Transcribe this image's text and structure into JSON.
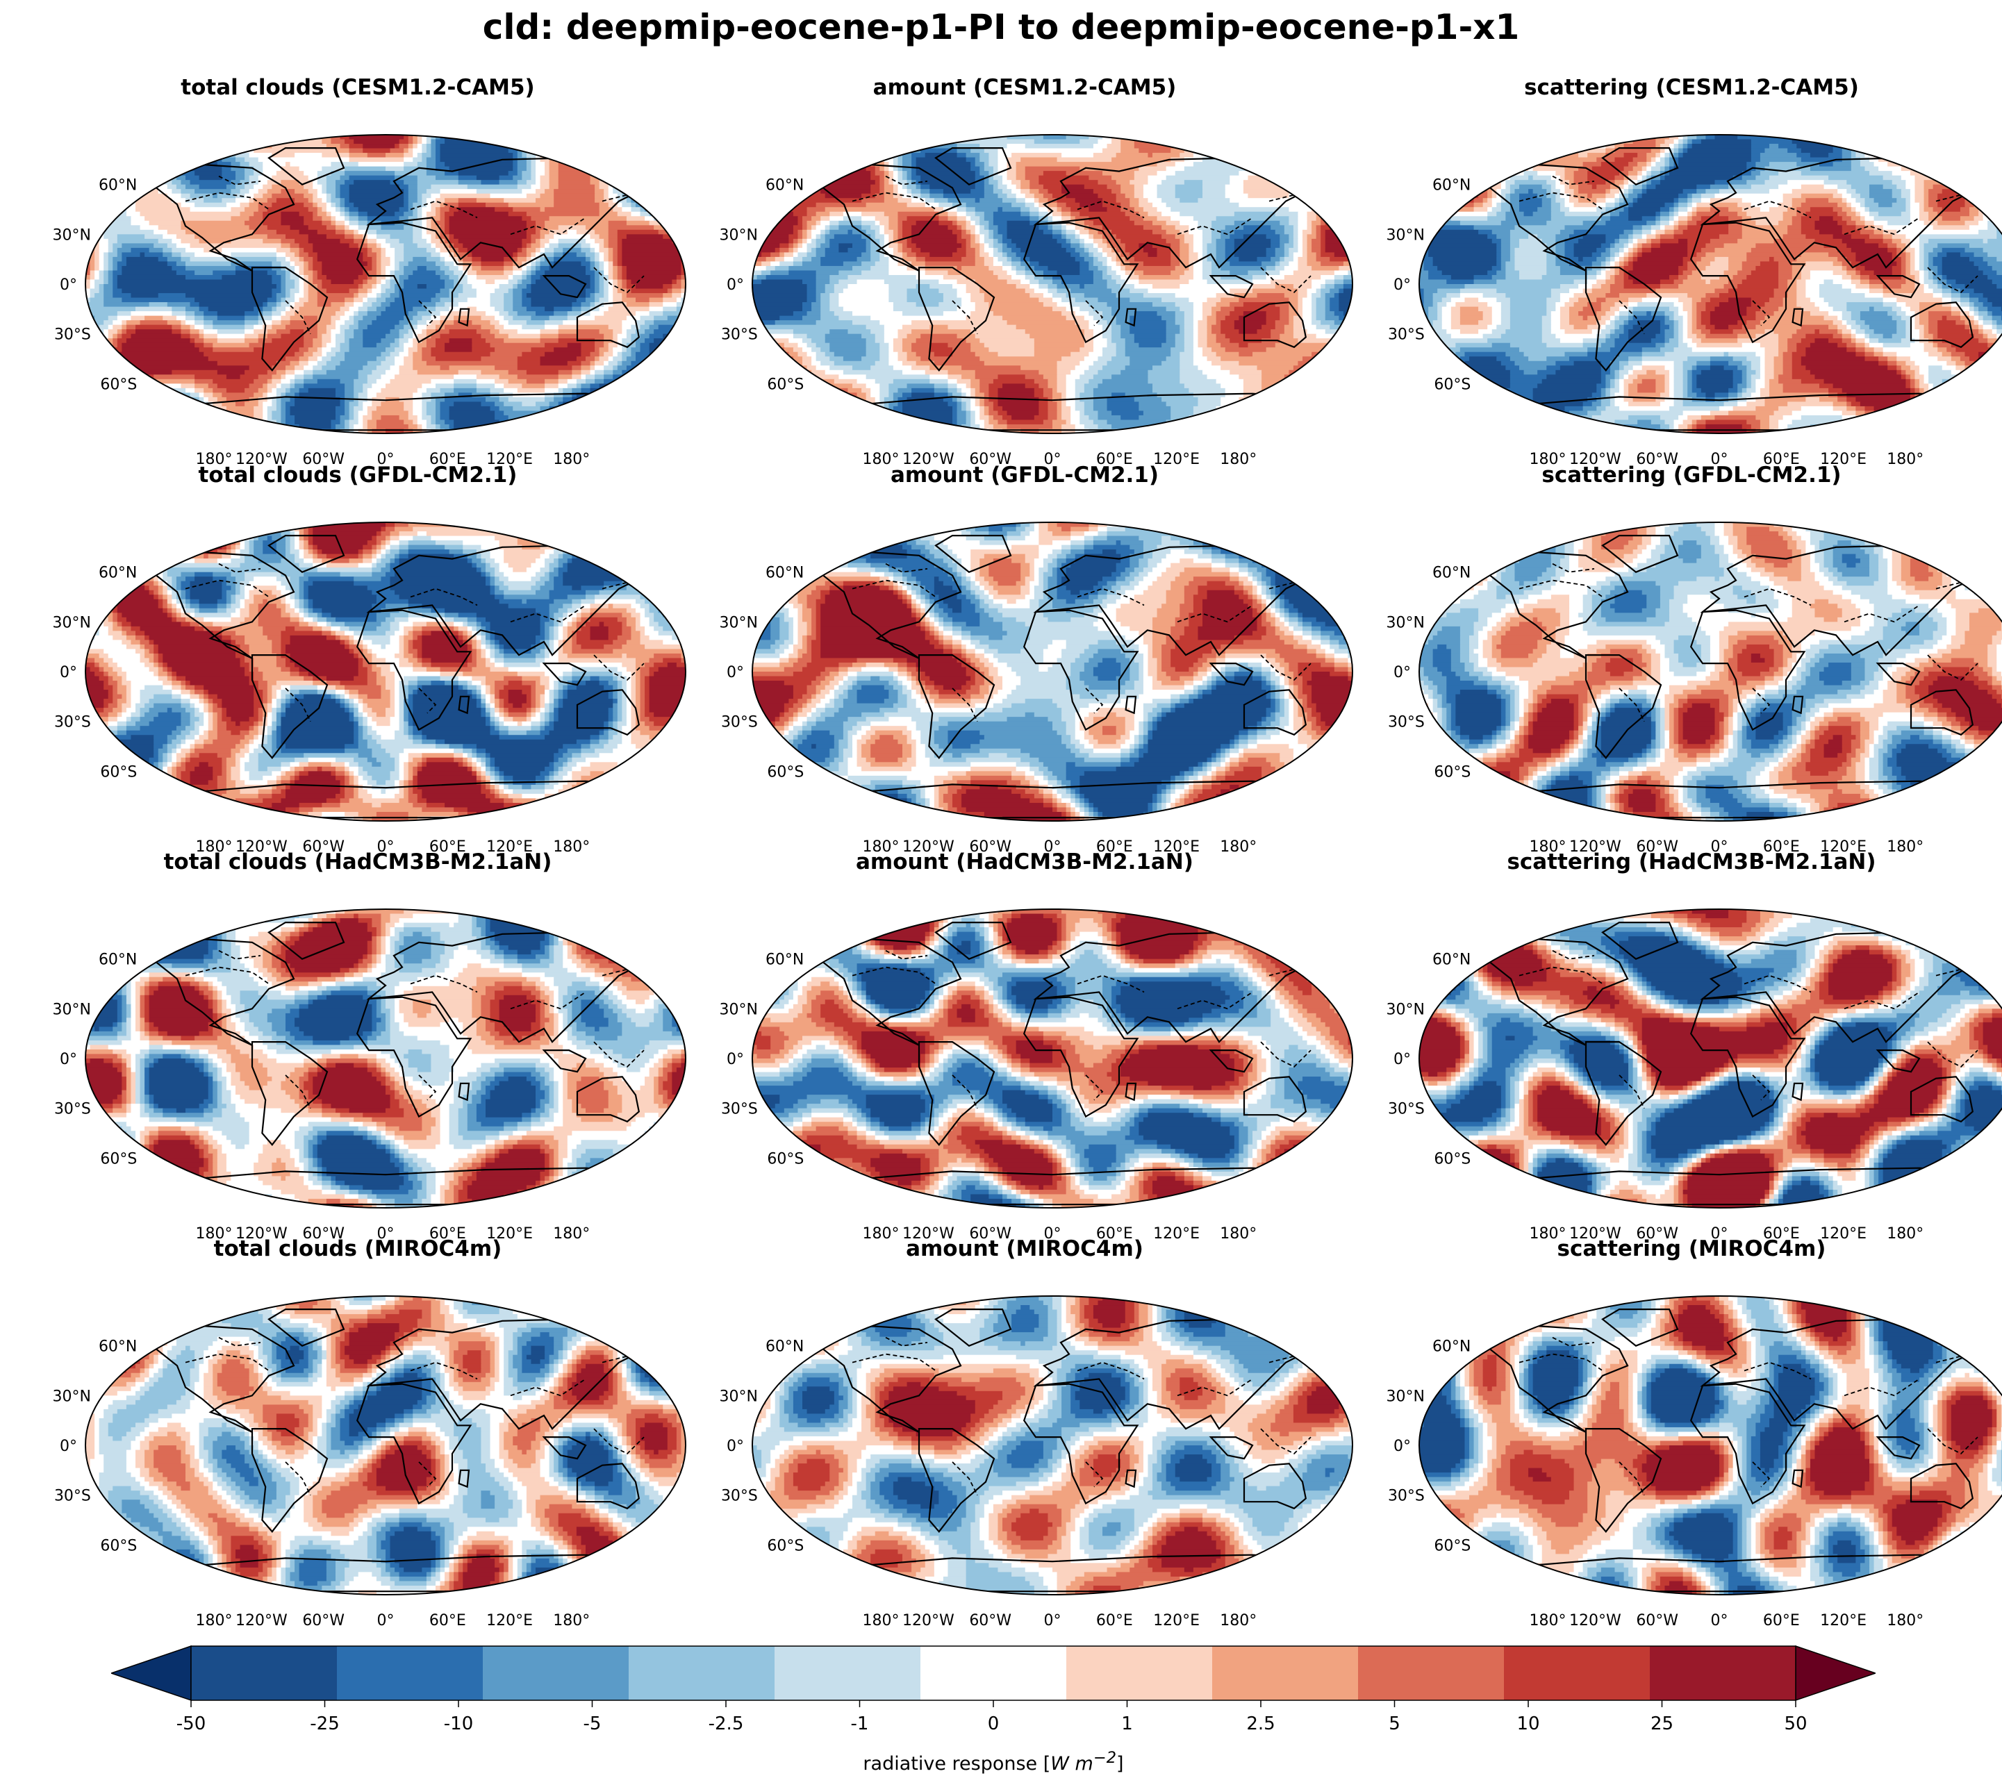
{
  "title": "cld: deepmip-eocene-p1-PI to deepmip-eocene-p1-x1",
  "chart_data": {
    "type": "heatmap",
    "projection": "Robinson",
    "lat_labels": [
      "60°N",
      "30°N",
      "0°",
      "30°S",
      "60°S"
    ],
    "lon_labels": [
      "180°",
      "120°W",
      "60°W",
      "0°",
      "60°E",
      "120°E",
      "180°"
    ],
    "panels": [
      {
        "title": "total clouds (CESM1.2-CAM5)",
        "model": "CESM1.2-CAM5",
        "component": "total clouds"
      },
      {
        "title": "amount (CESM1.2-CAM5)",
        "model": "CESM1.2-CAM5",
        "component": "amount"
      },
      {
        "title": "scattering (CESM1.2-CAM5)",
        "model": "CESM1.2-CAM5",
        "component": "scattering"
      },
      {
        "title": "total clouds (GFDL-CM2.1)",
        "model": "GFDL-CM2.1",
        "component": "total clouds"
      },
      {
        "title": "amount (GFDL-CM2.1)",
        "model": "GFDL-CM2.1",
        "component": "amount"
      },
      {
        "title": "scattering (GFDL-CM2.1)",
        "model": "GFDL-CM2.1",
        "component": "scattering"
      },
      {
        "title": "total clouds (HadCM3B-M2.1aN)",
        "model": "HadCM3B-M2.1aN",
        "component": "total clouds"
      },
      {
        "title": "amount (HadCM3B-M2.1aN)",
        "model": "HadCM3B-M2.1aN",
        "component": "amount"
      },
      {
        "title": "scattering (HadCM3B-M2.1aN)",
        "model": "HadCM3B-M2.1aN",
        "component": "scattering"
      },
      {
        "title": "total clouds (MIROC4m)",
        "model": "MIROC4m",
        "component": "total clouds"
      },
      {
        "title": "amount (MIROC4m)",
        "model": "MIROC4m",
        "component": "amount"
      },
      {
        "title": "scattering (MIROC4m)",
        "model": "MIROC4m",
        "component": "scattering"
      }
    ],
    "colorbar": {
      "label_prefix": "radiative response [",
      "label_units": "W m",
      "label_exp": "−2",
      "label_suffix": "]",
      "levels": [
        "-50",
        "-25",
        "-10",
        "-5",
        "-2.5",
        "-1",
        "0",
        "1",
        "2.5",
        "5",
        "10",
        "25",
        "50"
      ],
      "boundaries": [
        "-50",
        "-25",
        "-10",
        "-5",
        "-2.5",
        "-1",
        "1",
        "2.5",
        "5",
        "10",
        "25",
        "50"
      ],
      "colors": [
        "#1a4d8a",
        "#2b6eaf",
        "#5b9bc8",
        "#94c4df",
        "#c7dfec",
        "#ffffff",
        "#fbd3c0",
        "#f1a380",
        "#dc6b55",
        "#c23a33",
        "#99192a"
      ],
      "extend_min_color": "#08306b",
      "extend_max_color": "#67001f"
    }
  }
}
